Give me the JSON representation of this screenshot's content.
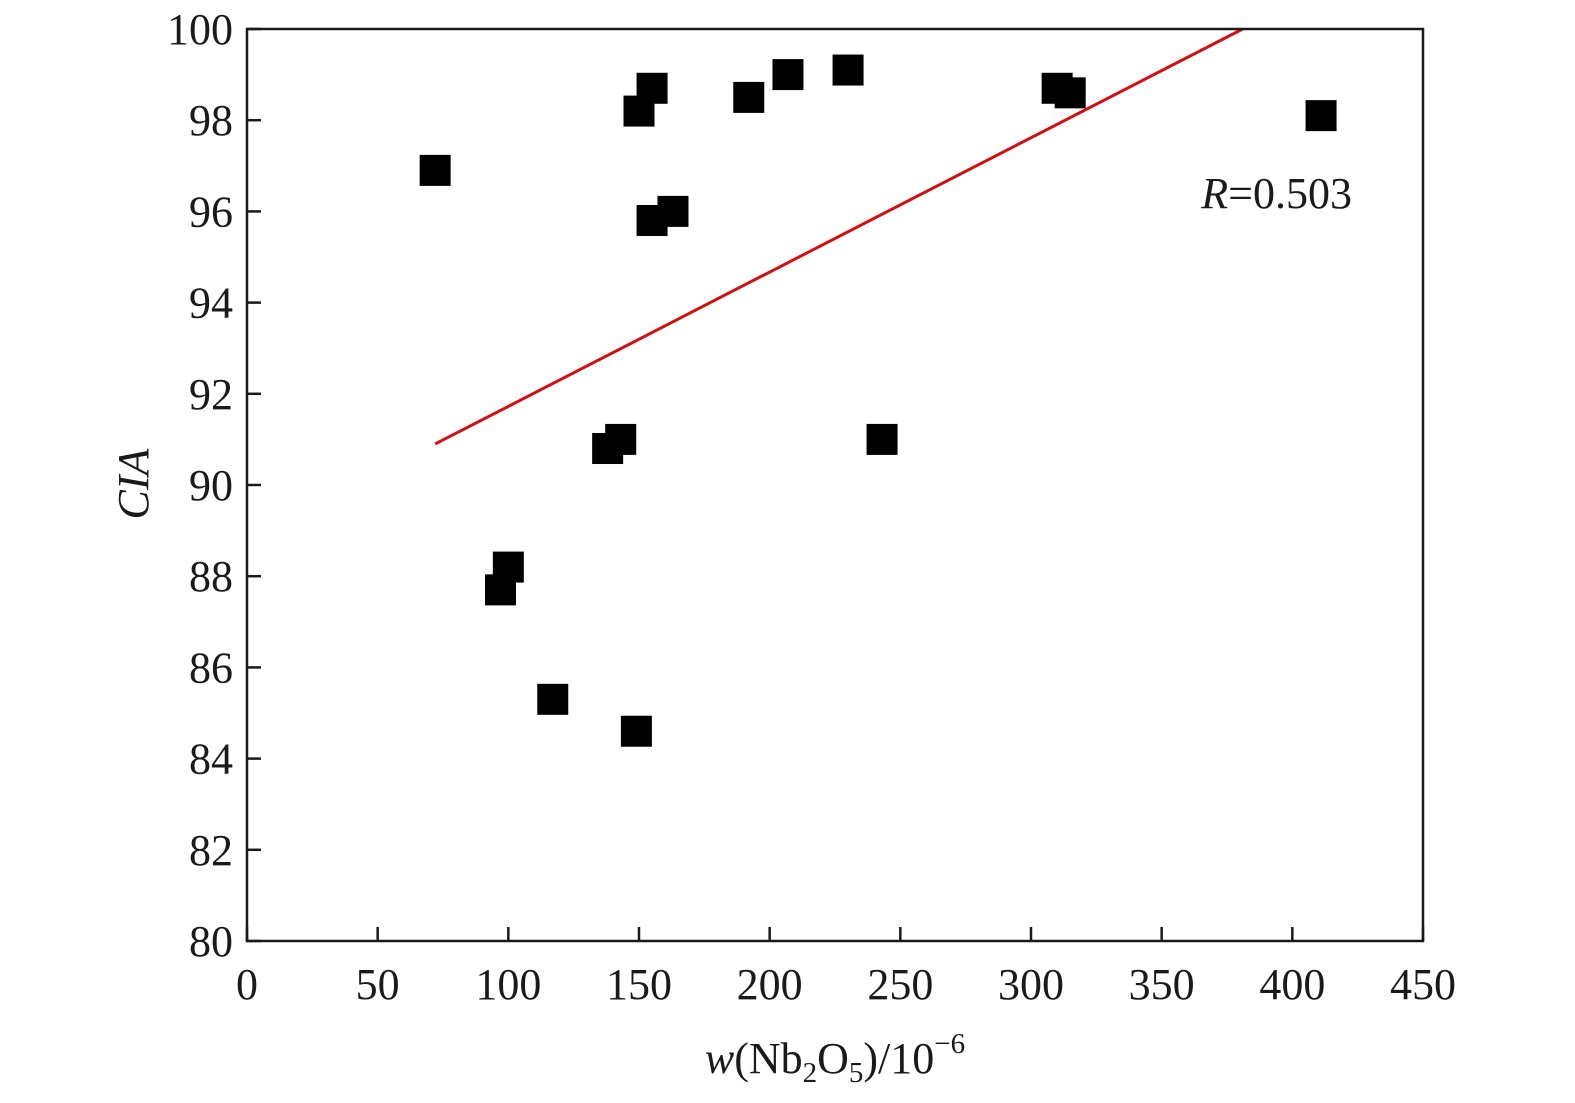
{
  "chart_data": {
    "type": "scatter",
    "title": "",
    "xlabel": {
      "var": "w",
      "open": "(Nb",
      "sub1": "2",
      "mid": "O",
      "sub2": "5",
      "close": ")/10",
      "sup": "−6"
    },
    "ylabel": "CIA",
    "xlim": [
      0,
      450
    ],
    "ylim": [
      80,
      100
    ],
    "xticks": [
      0,
      50,
      100,
      150,
      200,
      250,
      300,
      350,
      400,
      450
    ],
    "yticks": [
      80,
      82,
      84,
      86,
      88,
      90,
      92,
      94,
      96,
      98,
      100
    ],
    "grid": false,
    "colors": {
      "marker": "#000000",
      "fit_line": "#d40f0f",
      "axis": "#1a1a1a"
    },
    "points": [
      {
        "x": 72,
        "y": 96.9
      },
      {
        "x": 97,
        "y": 87.7
      },
      {
        "x": 100,
        "y": 88.2
      },
      {
        "x": 117,
        "y": 85.3
      },
      {
        "x": 138,
        "y": 90.8
      },
      {
        "x": 143,
        "y": 91.0
      },
      {
        "x": 149,
        "y": 84.6
      },
      {
        "x": 150,
        "y": 98.2
      },
      {
        "x": 155,
        "y": 98.7
      },
      {
        "x": 155,
        "y": 95.8
      },
      {
        "x": 163,
        "y": 96.0
      },
      {
        "x": 192,
        "y": 98.5
      },
      {
        "x": 207,
        "y": 99.0
      },
      {
        "x": 230,
        "y": 99.1
      },
      {
        "x": 243,
        "y": 91.0
      },
      {
        "x": 310,
        "y": 98.7
      },
      {
        "x": 315,
        "y": 98.6
      },
      {
        "x": 411,
        "y": 98.1
      }
    ],
    "fit_line": {
      "x": [
        72,
        381
      ],
      "y": [
        90.9,
        100
      ]
    },
    "annotation": {
      "var": "R",
      "value": "=0.503"
    }
  }
}
